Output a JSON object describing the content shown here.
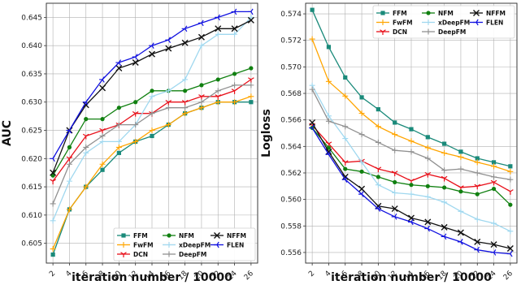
{
  "chart_data": [
    {
      "type": "line",
      "xlabel": "iteration number / 10000",
      "ylabel": "AUC",
      "x": [
        2,
        4,
        6,
        8,
        10,
        12,
        14,
        16,
        18,
        20,
        22,
        24,
        26
      ],
      "x_ticks": [
        "2",
        "4",
        "6",
        "8",
        "10",
        "12",
        "14",
        "16",
        "18",
        "20",
        "22",
        "24",
        "26"
      ],
      "ylim": [
        0.6015,
        0.6475
      ],
      "y_ticks": [
        "0.605",
        "0.610",
        "0.615",
        "0.620",
        "0.625",
        "0.630",
        "0.635",
        "0.640",
        "0.645"
      ],
      "grid": true,
      "legend_position": "bottom-right",
      "series": [
        {
          "name": "FFM",
          "color": "#1a8a7a",
          "marker": "square",
          "values": [
            0.603,
            0.611,
            0.615,
            0.618,
            0.621,
            0.623,
            0.624,
            0.626,
            0.628,
            0.629,
            0.63,
            0.63,
            0.63
          ]
        },
        {
          "name": "FwFM",
          "color": "#ffa500",
          "marker": "plus",
          "values": [
            0.604,
            0.611,
            0.615,
            0.619,
            0.622,
            0.623,
            0.625,
            0.626,
            0.628,
            0.629,
            0.63,
            0.63,
            0.631
          ]
        },
        {
          "name": "DCN",
          "color": "#e8101a",
          "marker": "tri",
          "values": [
            0.616,
            0.62,
            0.624,
            0.625,
            0.626,
            0.628,
            0.628,
            0.63,
            0.63,
            0.631,
            0.631,
            0.632,
            0.634
          ]
        },
        {
          "name": "NFM",
          "color": "#108010",
          "marker": "circle",
          "values": [
            0.617,
            0.622,
            0.627,
            0.627,
            0.629,
            0.63,
            0.632,
            0.632,
            0.632,
            0.633,
            0.634,
            0.635,
            0.636
          ]
        },
        {
          "name": "xDeepFM",
          "color": "#a0d8ef",
          "marker": "plus",
          "values": [
            0.609,
            0.616,
            0.621,
            0.623,
            0.623,
            0.626,
            0.631,
            0.632,
            0.634,
            0.64,
            0.642,
            0.642,
            0.645
          ]
        },
        {
          "name": "DeepFM",
          "color": "#909090",
          "marker": "plus",
          "values": [
            0.612,
            0.619,
            0.622,
            0.624,
            0.626,
            0.626,
            0.628,
            0.629,
            0.629,
            0.63,
            0.632,
            0.633,
            0.633
          ]
        },
        {
          "name": "NFFM",
          "color": "#111111",
          "marker": "x",
          "values": [
            0.6175,
            0.625,
            0.6295,
            0.6325,
            0.636,
            0.637,
            0.6385,
            0.6395,
            0.6405,
            0.6415,
            0.643,
            0.643,
            0.6445
          ]
        },
        {
          "name": "FLEN",
          "color": "#1010e0",
          "marker": "tri-right",
          "values": [
            0.62,
            0.625,
            0.63,
            0.634,
            0.637,
            0.638,
            0.64,
            0.641,
            0.643,
            0.644,
            0.645,
            0.646,
            0.646
          ]
        }
      ]
    },
    {
      "type": "line",
      "xlabel": "iteration number / 10000",
      "ylabel": "Logloss",
      "x": [
        2,
        4,
        6,
        8,
        10,
        12,
        14,
        16,
        18,
        20,
        22,
        24,
        26
      ],
      "x_ticks": [
        "2",
        "4",
        "6",
        "8",
        "10",
        "12",
        "14",
        "16",
        "18",
        "20",
        "22",
        "24",
        "26"
      ],
      "ylim": [
        0.5552,
        0.5748
      ],
      "y_ticks": [
        "0.556",
        "0.558",
        "0.560",
        "0.562",
        "0.564",
        "0.566",
        "0.568",
        "0.570",
        "0.572",
        "0.574"
      ],
      "grid": true,
      "legend_position": "top-right",
      "series": [
        {
          "name": "FFM",
          "color": "#1a8a7a",
          "marker": "square",
          "values": [
            0.5743,
            0.5715,
            0.5692,
            0.5677,
            0.5668,
            0.5658,
            0.5653,
            0.5647,
            0.5642,
            0.5636,
            0.5631,
            0.5628,
            0.5625
          ]
        },
        {
          "name": "FwFM",
          "color": "#ffa500",
          "marker": "plus",
          "values": [
            0.5721,
            0.5689,
            0.5678,
            0.5665,
            0.5655,
            0.5649,
            0.5644,
            0.5639,
            0.5635,
            0.5632,
            0.5628,
            0.5625,
            0.5621
          ]
        },
        {
          "name": "DCN",
          "color": "#e8101a",
          "marker": "tri",
          "values": [
            0.5656,
            0.5642,
            0.5628,
            0.5629,
            0.5623,
            0.562,
            0.5614,
            0.5619,
            0.5616,
            0.5609,
            0.561,
            0.5613,
            0.5606
          ]
        },
        {
          "name": "NFM",
          "color": "#108010",
          "marker": "circle",
          "values": [
            0.5654,
            0.5639,
            0.5623,
            0.5621,
            0.5617,
            0.5613,
            0.5611,
            0.561,
            0.5609,
            0.5606,
            0.5604,
            0.5608,
            0.5596
          ]
        },
        {
          "name": "xDeepFM",
          "color": "#a0d8ef",
          "marker": "plus",
          "values": [
            0.5686,
            0.5663,
            0.5646,
            0.5628,
            0.5611,
            0.5605,
            0.5604,
            0.5602,
            0.5598,
            0.5591,
            0.5585,
            0.5582,
            0.5576
          ]
        },
        {
          "name": "DeepFM",
          "color": "#909090",
          "marker": "plus",
          "values": [
            0.5683,
            0.5659,
            0.5655,
            0.5649,
            0.5643,
            0.5637,
            0.5636,
            0.5631,
            0.5622,
            0.5623,
            0.562,
            0.5617,
            0.5615
          ]
        },
        {
          "name": "NFFM",
          "color": "#111111",
          "marker": "x",
          "values": [
            0.5658,
            0.5636,
            0.5617,
            0.5608,
            0.5595,
            0.5593,
            0.5586,
            0.5583,
            0.5579,
            0.5575,
            0.5568,
            0.5566,
            0.5563
          ]
        },
        {
          "name": "FLEN",
          "color": "#1010e0",
          "marker": "tri-right",
          "values": [
            0.5654,
            0.5634,
            0.5615,
            0.5604,
            0.5593,
            0.5587,
            0.5583,
            0.5578,
            0.5572,
            0.5568,
            0.5562,
            0.556,
            0.5559
          ]
        }
      ]
    }
  ]
}
